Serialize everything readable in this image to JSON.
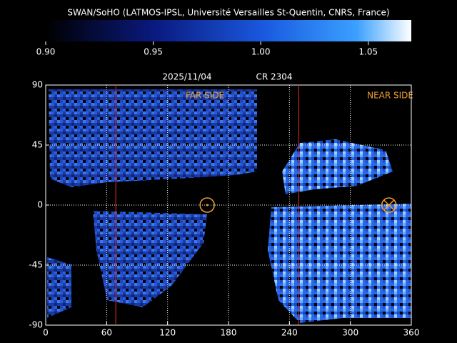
{
  "chart_data": {
    "type": "map",
    "title": "SWAN/SoHO (LATMOS-IPSL, Université Versailles St-Quentin, CNRS, France)",
    "date": "2025/11/04",
    "rotation": "CR 2304",
    "far_label": "FAR SIDE",
    "near_label": "NEAR SIDE",
    "colorbar": {
      "lim": [
        0.9,
        1.07
      ],
      "ticks": [
        {
          "value": 0.9,
          "label": "0.90"
        },
        {
          "value": 0.95,
          "label": "0.95"
        },
        {
          "value": 1.0,
          "label": "1.00"
        },
        {
          "value": 1.05,
          "label": "1.05"
        }
      ]
    },
    "xlim": [
      0,
      360
    ],
    "xticks": [
      0,
      60,
      120,
      180,
      240,
      300,
      360
    ],
    "ylim": [
      -90,
      90
    ],
    "yticks": [
      -90,
      -45,
      0,
      45,
      90
    ],
    "grid": true,
    "grid_color": "#ffffff",
    "vlines": [
      69,
      249
    ],
    "vline_color": "#e03020",
    "markers": [
      {
        "x": 159,
        "y": 0,
        "kind": "dot"
      },
      {
        "x": 338,
        "y": 0,
        "kind": "cross"
      }
    ],
    "marker_color": "#f0a030"
  }
}
